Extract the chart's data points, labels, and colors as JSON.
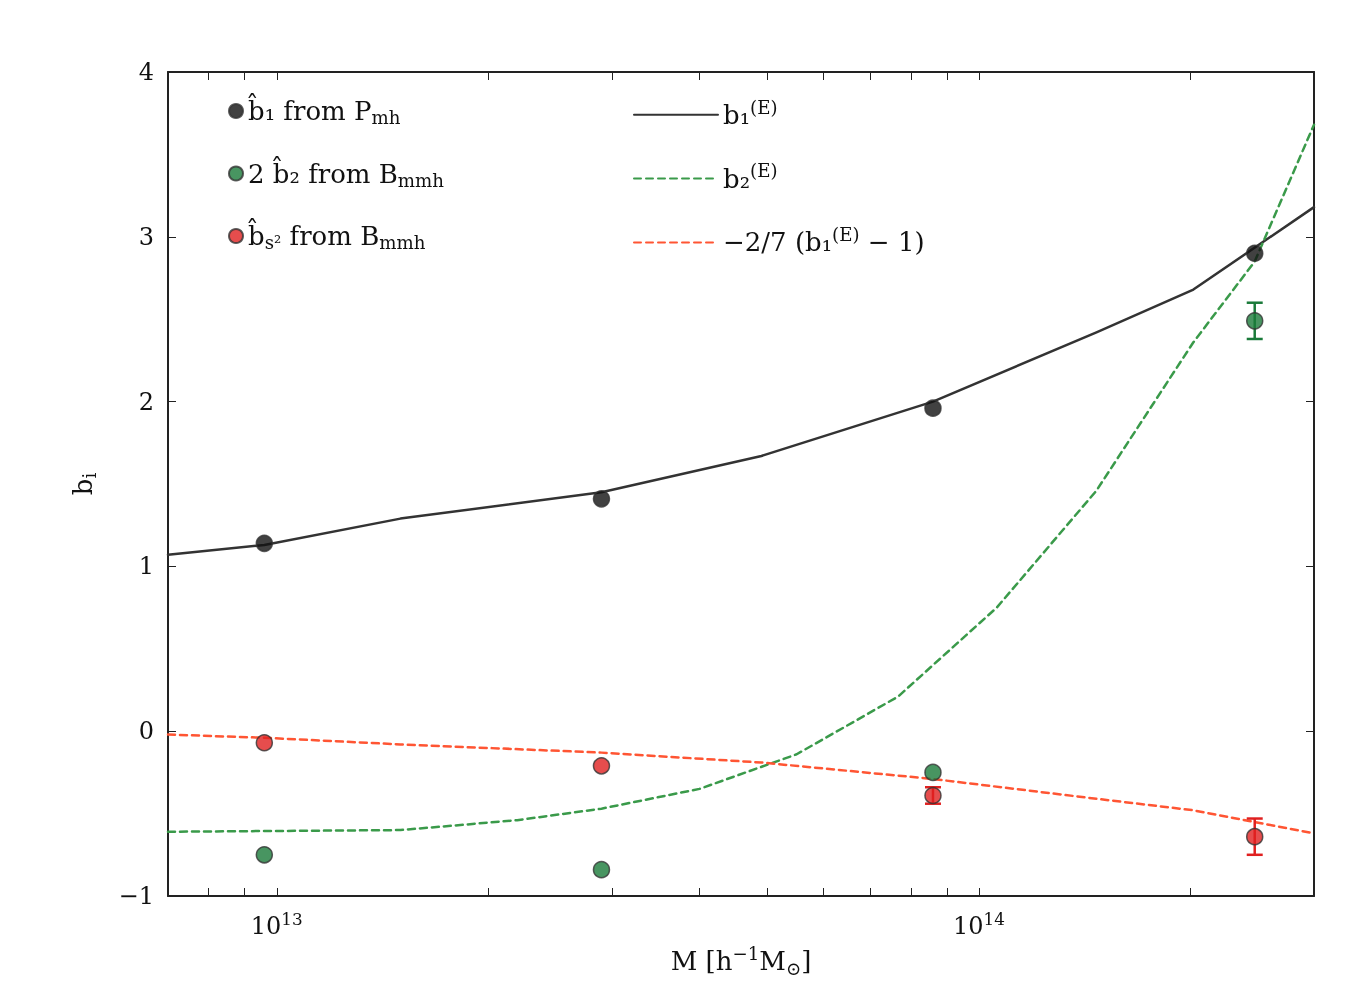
{
  "chart_data": {
    "type": "scatter",
    "xlabel": "M [h$^{−1}$M$_{⊙}$]",
    "ylabel": "b$_{i}$",
    "log": "x",
    "xlim": [
      7000000000000.0,
      300000000000000.0
    ],
    "xticks": [
      {
        "value": 8000000000000.0,
        "label": null
      },
      {
        "value": 9000000000000.0,
        "label": null
      },
      {
        "value": 10000000000000.0,
        "label": "10$^{13}$"
      },
      {
        "value": 20000000000000.0,
        "label": null
      },
      {
        "value": 30000000000000.0,
        "label": null
      },
      {
        "value": 40000000000000.0,
        "label": null
      },
      {
        "value": 50000000000000.0,
        "label": null
      },
      {
        "value": 60000000000000.0,
        "label": null
      },
      {
        "value": 70000000000000.0,
        "label": null
      },
      {
        "value": 80000000000000.0,
        "label": null
      },
      {
        "value": 90000000000000.0,
        "label": null
      },
      {
        "value": 100000000000000.0,
        "label": "10$^{14}$"
      },
      {
        "value": 200000000000000.0,
        "label": null
      }
    ],
    "ylim": [
      -1,
      4
    ],
    "yticks": [
      -1,
      0,
      1,
      2,
      3,
      4
    ],
    "grid": false,
    "legend": "top left",
    "series": [
      {
        "name": "b̂₁ from P$_{mh}$",
        "marker": "circle",
        "color": "#111111",
        "x": [
          9600000000000.0,
          29000000000000.0,
          86000000000000.0,
          247000000000000.0
        ],
        "values": [
          1.14,
          1.41,
          1.96,
          2.9
        ]
      },
      {
        "name": "2 b̂₂ from B$_{mmh}$",
        "marker": "circle",
        "color": "#1a7a3a",
        "x": [
          9600000000000.0,
          29000000000000.0,
          86000000000000.0,
          247000000000000.0
        ],
        "values": [
          -0.75,
          -0.84,
          -0.25,
          2.49
        ],
        "errors": [
          null,
          null,
          null,
          0.11
        ]
      },
      {
        "name": "b̂$_{s²}$ from B$_{mmh}$",
        "marker": "circle",
        "color": "#e02020",
        "x": [
          9600000000000.0,
          29000000000000.0,
          86000000000000.0,
          247000000000000.0
        ],
        "values": [
          -0.07,
          -0.21,
          -0.39,
          -0.64
        ],
        "errors": [
          null,
          null,
          0.05,
          0.11
        ]
      },
      {
        "name": "b₁$^{(E)}$",
        "type": "line",
        "marker": "none",
        "color": "#333333",
        "line_style": "solid",
        "x": [
          7000000000000.0,
          9600000000000.0,
          15000000000000.0,
          29000000000000.0,
          49000000000000.0,
          86000000000000.0,
          147000000000000.0,
          202000000000000.0,
          300000000000000.0
        ],
        "values": [
          1.07,
          1.13,
          1.29,
          1.45,
          1.67,
          2.0,
          2.42,
          2.68,
          3.18
        ]
      },
      {
        "name": "b₂$^{(E)}$",
        "type": "line",
        "marker": "none",
        "color": "#3a9a4a",
        "line_style": "dashed",
        "x": [
          7000000000000.0,
          15000000000000.0,
          22000000000000.0,
          29000000000000.0,
          40000000000000.0,
          55000000000000.0,
          76700000000000.0,
          106000000000000.0,
          147000000000000.0,
          202000000000000.0,
          247000000000000.0,
          300000000000000.0
        ],
        "values": [
          -0.61,
          -0.6,
          -0.54,
          -0.47,
          -0.35,
          -0.14,
          0.21,
          0.75,
          1.46,
          2.36,
          2.85,
          3.68
        ]
      },
      {
        "name": "−2/7 (b₁$^{(E)}$ − 1)",
        "type": "line",
        "marker": "none",
        "color": "#ff5533",
        "line_style": "dashed",
        "x": [
          7000000000000.0,
          9600000000000.0,
          15000000000000.0,
          29000000000000.0,
          49000000000000.0,
          86000000000000.0,
          147000000000000.0,
          202000000000000.0,
          300000000000000.0
        ],
        "values": [
          -0.02,
          -0.04,
          -0.08,
          -0.13,
          -0.19,
          -0.29,
          -0.41,
          -0.48,
          -0.62
        ]
      }
    ]
  }
}
